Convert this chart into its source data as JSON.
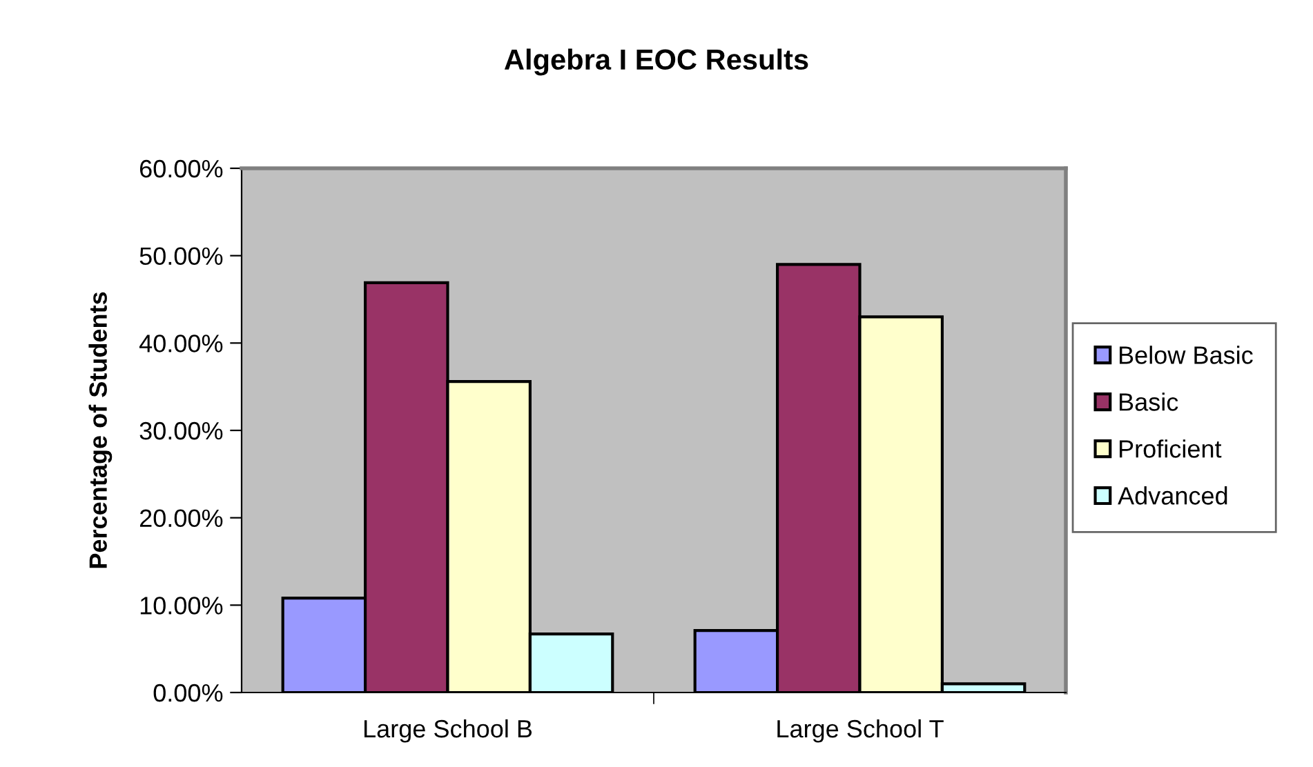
{
  "chart_data": {
    "type": "bar",
    "title": "Algebra I EOC Results",
    "ylabel": "Percentage of Students",
    "categories": [
      "Large School B",
      "Large School T"
    ],
    "series": [
      {
        "name": "Below Basic",
        "color": "#9999ff",
        "values": [
          10.8,
          7.1
        ]
      },
      {
        "name": "Basic",
        "color": "#993366",
        "values": [
          46.9,
          49.0
        ]
      },
      {
        "name": "Proficient",
        "color": "#ffffcc",
        "values": [
          35.6,
          43.0
        ]
      },
      {
        "name": "Advanced",
        "color": "#ccffff",
        "values": [
          6.7,
          1.0
        ]
      }
    ],
    "ylim": [
      0,
      60
    ],
    "yticks": [
      {
        "value": 0,
        "label": "0.00%"
      },
      {
        "value": 10,
        "label": "10.00%"
      },
      {
        "value": 20,
        "label": "20.00%"
      },
      {
        "value": 30,
        "label": "30.00%"
      },
      {
        "value": 40,
        "label": "40.00%"
      },
      {
        "value": 50,
        "label": "50.00%"
      },
      {
        "value": 60,
        "label": "60.00%"
      }
    ],
    "grid": false,
    "legend": "right"
  }
}
